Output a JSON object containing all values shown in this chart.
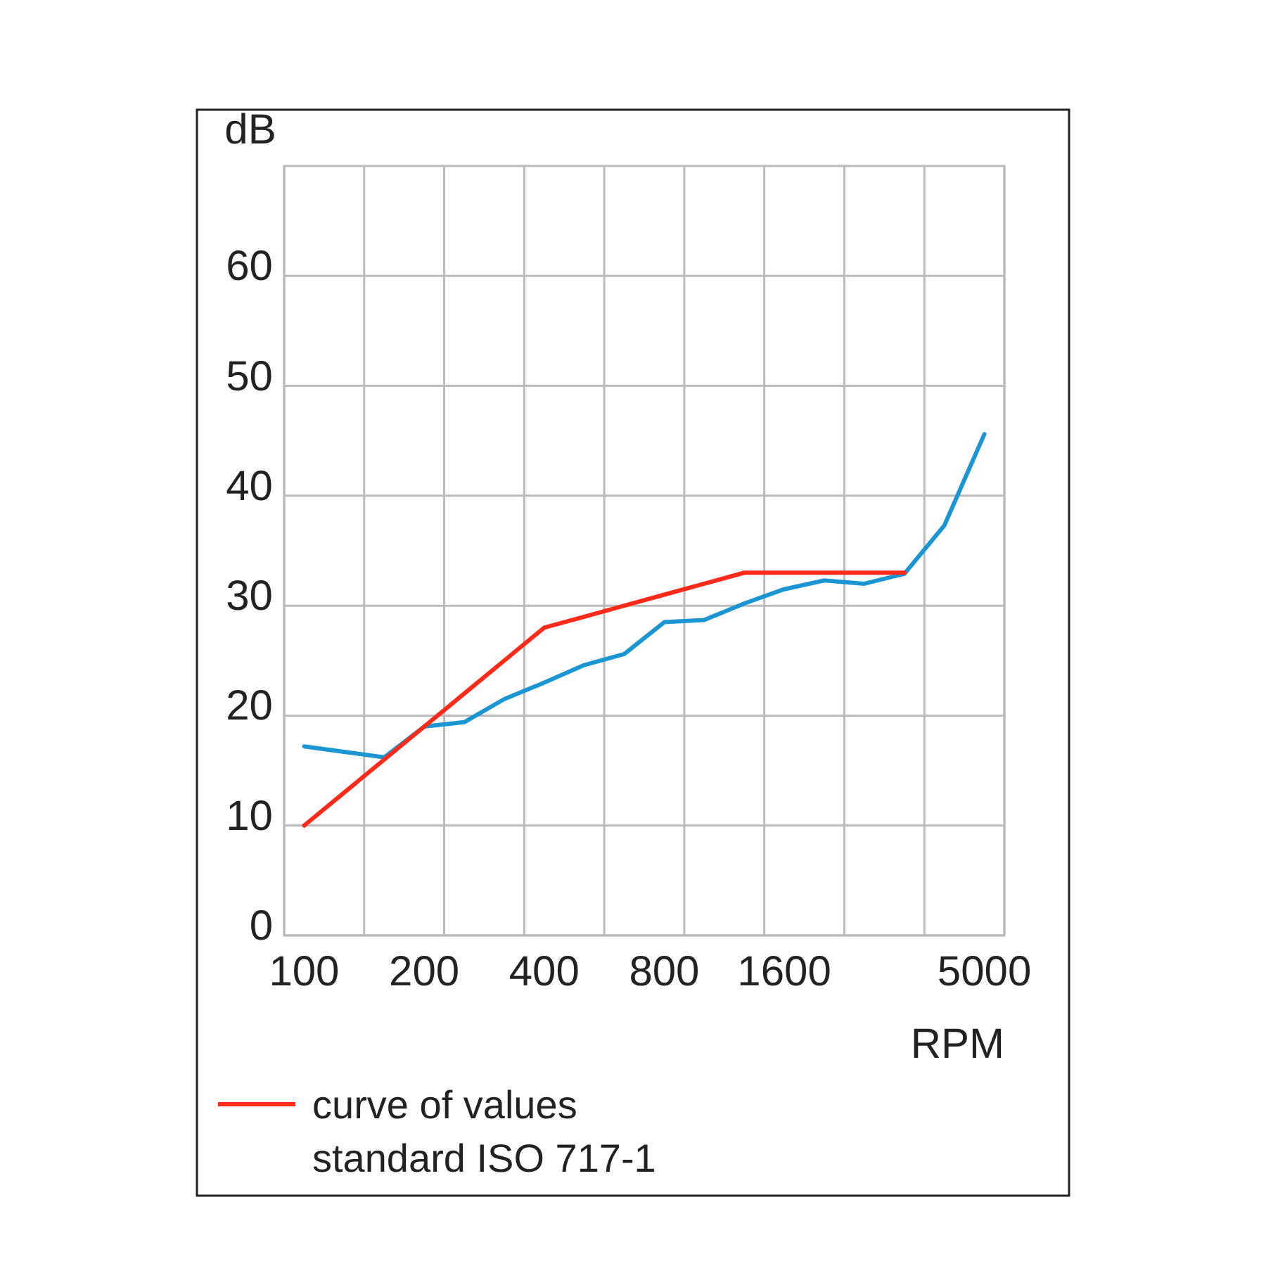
{
  "chart_data": {
    "type": "line",
    "ylabel": "dB",
    "xlabel": "RPM",
    "categories": [
      "100",
      null,
      null,
      "200",
      null,
      null,
      "400",
      null,
      null,
      "800",
      null,
      null,
      "1600",
      null,
      null,
      null,
      null,
      "5000"
    ],
    "series": [
      {
        "color": "#1b96d2",
        "values": [
          17.2,
          16.7,
          16.2,
          19.0,
          19.4,
          21.5,
          23.0,
          24.6,
          25.6,
          28.5,
          28.7,
          30.2,
          31.5,
          32.3,
          32.0,
          32.9,
          37.3,
          45.6
        ]
      },
      {
        "name": "curve of values standard ISO 717-1",
        "color": "#ff2a1a",
        "values": [
          10,
          13,
          16,
          19,
          22,
          25,
          28,
          29,
          30,
          31,
          32,
          33,
          33,
          33,
          33,
          33,
          null,
          null
        ]
      }
    ],
    "ylim": [
      0,
      70
    ],
    "yticks": [
      0,
      10,
      20,
      30,
      40,
      50,
      60
    ],
    "grid": true,
    "legend": "bottom"
  }
}
